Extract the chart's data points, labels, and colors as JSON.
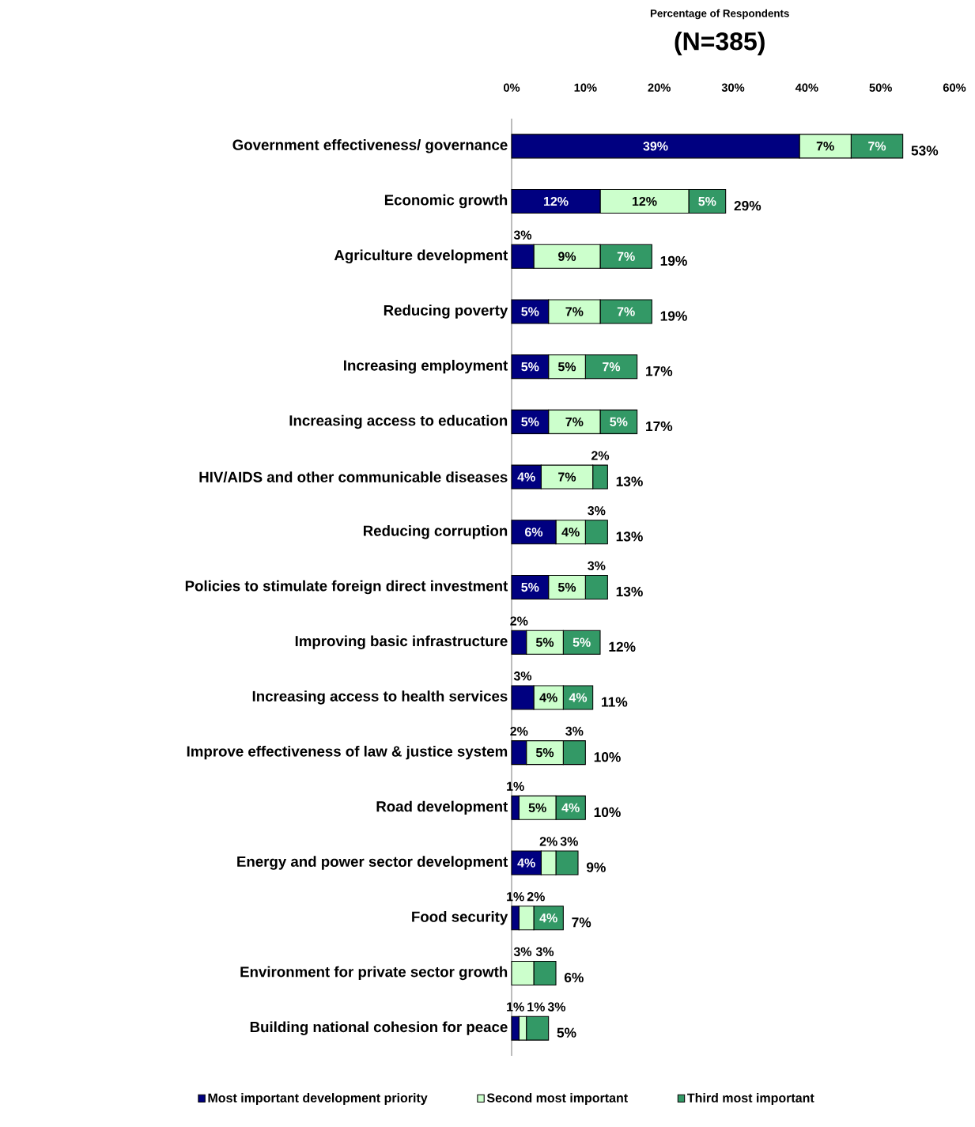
{
  "chart_data": {
    "type": "bar",
    "orientation": "horizontal",
    "stacked": true,
    "title": "Percentage of Respondents",
    "subtitle": "(N=385)",
    "categories": [
      "Government effectiveness/ governance",
      "Economic growth",
      "Agriculture development",
      "Reducing poverty",
      "Increasing employment",
      "Increasing access to education",
      "HIV/AIDS and other communicable diseases",
      "Reducing corruption",
      "Policies to stimulate foreign direct investment",
      "Improving basic infrastructure",
      "Increasing access to health services",
      "Improve effectiveness of law & justice system",
      "Road development",
      "Energy and power sector development",
      "Food security",
      "Environment for private sector growth",
      "Building national cohesion for peace"
    ],
    "series": [
      {
        "name": "Most important development priority",
        "color": "#000080",
        "values": [
          39,
          12,
          3,
          5,
          5,
          5,
          4,
          6,
          5,
          2,
          3,
          2,
          1,
          4,
          1,
          0,
          1
        ],
        "value_labels": [
          "39%",
          "12%",
          "3%",
          "5%",
          "5%",
          "5%",
          "4%",
          "6%",
          "5%",
          "2%",
          "3%",
          "2%",
          "1%",
          "4%",
          "1%",
          null,
          "1%"
        ]
      },
      {
        "name": "Second most important",
        "color": "#ccffcc",
        "values": [
          7,
          12,
          9,
          7,
          5,
          7,
          7,
          4,
          5,
          5,
          4,
          5,
          5,
          2,
          2,
          3,
          1
        ],
        "value_labels": [
          "7%",
          "12%",
          "9%",
          "7%",
          "5%",
          "7%",
          "7%",
          "4%",
          "5%",
          "5%",
          "4%",
          "5%",
          "5%",
          "2%",
          "2%",
          "3%",
          "1%"
        ]
      },
      {
        "name": "Third most important",
        "color": "#339966",
        "values": [
          7,
          5,
          7,
          7,
          7,
          5,
          2,
          3,
          3,
          5,
          4,
          3,
          4,
          3,
          4,
          3,
          3
        ],
        "value_labels": [
          "7%",
          "5%",
          "7%",
          "7%",
          "7%",
          "5%",
          "2%",
          "3%",
          "3%",
          "5%",
          "4%",
          "3%",
          "4%",
          "3%",
          "4%",
          "3%",
          "3%"
        ]
      }
    ],
    "totals": [
      "53%",
      "29%",
      "19%",
      "19%",
      "17%",
      "17%",
      "13%",
      "13%",
      "13%",
      "12%",
      "11%",
      "10%",
      "10%",
      "9%",
      "7%",
      "6%",
      "5%"
    ],
    "xlim": [
      0,
      60
    ],
    "xticks": [
      {
        "value": 0,
        "label": "0%"
      },
      {
        "value": 10,
        "label": "10%"
      },
      {
        "value": 20,
        "label": "20%"
      },
      {
        "value": 30,
        "label": "30%"
      },
      {
        "value": 40,
        "label": "40%"
      },
      {
        "value": 50,
        "label": "50%"
      },
      {
        "value": 60,
        "label": "60%"
      }
    ],
    "legend": "bottom"
  }
}
